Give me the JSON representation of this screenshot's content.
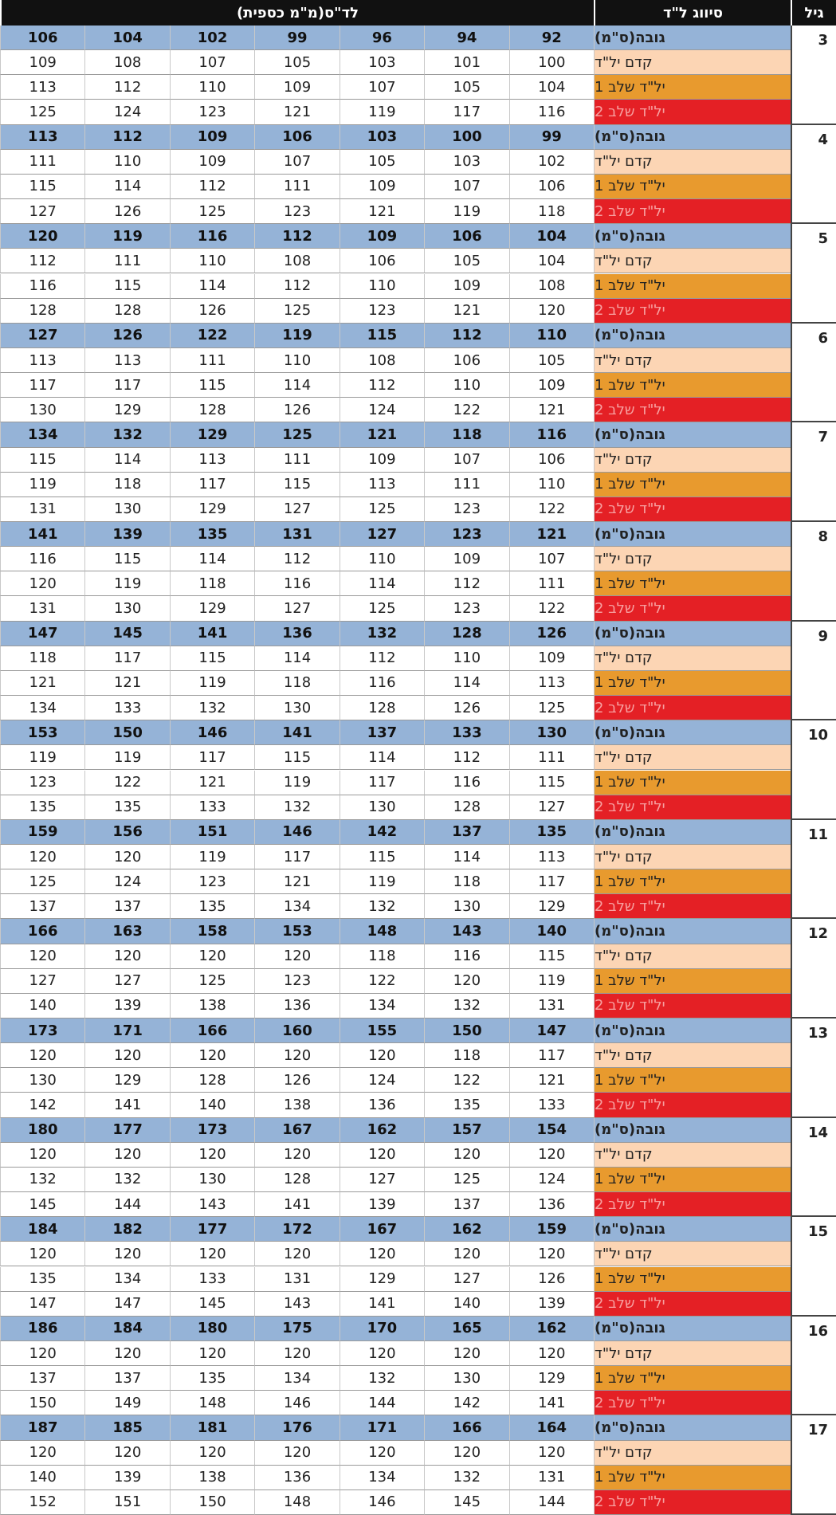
{
  "header": {
    "age": "גיל",
    "category": "סיווג ל\"ד",
    "bp": "לד\"ס(מ\"מ כספית)"
  },
  "groups": [
    {
      "age": "3",
      "rows": [
        {
          "label": "גובה(ס\"מ)",
          "values": [
            92,
            94,
            96,
            99,
            102,
            104,
            106
          ]
        },
        {
          "label": "קדם יל\"ד",
          "values": [
            100,
            101,
            103,
            105,
            107,
            108,
            109
          ]
        },
        {
          "label": "יל\"ד שלב 1",
          "values": [
            104,
            105,
            107,
            109,
            110,
            112,
            113
          ]
        },
        {
          "label": "יל\"ד שלב 2",
          "values": [
            116,
            117,
            119,
            121,
            123,
            124,
            125
          ]
        }
      ]
    },
    {
      "age": "4",
      "rows": [
        {
          "label": "גובה(ס\"מ)",
          "values": [
            99,
            100,
            103,
            106,
            109,
            112,
            113
          ]
        },
        {
          "label": "קדם יל\"ד",
          "values": [
            102,
            103,
            105,
            107,
            109,
            110,
            111
          ]
        },
        {
          "label": "יל\"ד שלב 1",
          "values": [
            106,
            107,
            109,
            111,
            112,
            114,
            115
          ]
        },
        {
          "label": "יל\"ד שלב 2",
          "values": [
            118,
            119,
            121,
            123,
            125,
            126,
            127
          ]
        }
      ]
    },
    {
      "age": "5",
      "rows": [
        {
          "label": "גובה(ס\"מ)",
          "values": [
            104,
            106,
            109,
            112,
            116,
            119,
            120
          ]
        },
        {
          "label": "קדם יל\"ד",
          "values": [
            104,
            105,
            106,
            108,
            110,
            111,
            112
          ]
        },
        {
          "label": "יל\"ד שלב 1",
          "values": [
            108,
            109,
            110,
            112,
            114,
            115,
            116
          ]
        },
        {
          "label": "יל\"ד שלב 2",
          "values": [
            120,
            121,
            123,
            125,
            126,
            128,
            128
          ]
        }
      ]
    },
    {
      "age": "6",
      "rows": [
        {
          "label": "גובה(ס\"מ)",
          "values": [
            110,
            112,
            115,
            119,
            122,
            126,
            127
          ]
        },
        {
          "label": "קדם יל\"ד",
          "values": [
            105,
            106,
            108,
            110,
            111,
            113,
            113
          ]
        },
        {
          "label": "יל\"ד שלב 1",
          "values": [
            109,
            110,
            112,
            114,
            115,
            117,
            117
          ]
        },
        {
          "label": "יל\"ד שלב 2",
          "values": [
            121,
            122,
            124,
            126,
            128,
            129,
            130
          ]
        }
      ]
    },
    {
      "age": "7",
      "rows": [
        {
          "label": "גובה(ס\"מ)",
          "values": [
            116,
            118,
            121,
            125,
            129,
            132,
            134
          ]
        },
        {
          "label": "קדם יל\"ד",
          "values": [
            106,
            107,
            109,
            111,
            113,
            114,
            115
          ]
        },
        {
          "label": "יל\"ד שלב 1",
          "values": [
            110,
            111,
            113,
            115,
            117,
            118,
            119
          ]
        },
        {
          "label": "יל\"ד שלב 2",
          "values": [
            122,
            123,
            125,
            127,
            129,
            130,
            131
          ]
        }
      ]
    },
    {
      "age": "8",
      "rows": [
        {
          "label": "גובה(ס\"מ)",
          "values": [
            121,
            123,
            127,
            131,
            135,
            139,
            141
          ]
        },
        {
          "label": "קדם יל\"ד",
          "values": [
            107,
            109,
            110,
            112,
            114,
            115,
            116
          ]
        },
        {
          "label": "יל\"ד שלב 1",
          "values": [
            111,
            112,
            114,
            116,
            118,
            119,
            120
          ]
        },
        {
          "label": "יל\"ד שלב 2",
          "values": [
            122,
            123,
            125,
            127,
            129,
            130,
            131
          ]
        }
      ]
    },
    {
      "age": "9",
      "rows": [
        {
          "label": "גובה(ס\"מ)",
          "values": [
            126,
            128,
            132,
            136,
            141,
            145,
            147
          ]
        },
        {
          "label": "קדם יל\"ד",
          "values": [
            109,
            110,
            112,
            114,
            115,
            117,
            118
          ]
        },
        {
          "label": "יל\"ד שלב 1",
          "values": [
            113,
            114,
            116,
            118,
            119,
            121,
            121
          ]
        },
        {
          "label": "יל\"ד שלב 2",
          "values": [
            125,
            126,
            128,
            130,
            132,
            133,
            134
          ]
        }
      ]
    },
    {
      "age": "10",
      "rows": [
        {
          "label": "גובה(ס\"מ)",
          "values": [
            130,
            133,
            137,
            141,
            146,
            150,
            153
          ]
        },
        {
          "label": "קדם יל\"ד",
          "values": [
            111,
            112,
            114,
            115,
            117,
            119,
            119
          ]
        },
        {
          "label": "יל\"ד שלב 1",
          "values": [
            115,
            116,
            117,
            119,
            121,
            122,
            123
          ]
        },
        {
          "label": "יל\"ד שלב 2",
          "values": [
            127,
            128,
            130,
            132,
            133,
            135,
            135
          ]
        }
      ]
    },
    {
      "age": "11",
      "rows": [
        {
          "label": "גובה(ס\"מ)",
          "values": [
            135,
            137,
            142,
            146,
            151,
            156,
            159
          ]
        },
        {
          "label": "קדם יל\"ד",
          "values": [
            113,
            114,
            115,
            117,
            119,
            120,
            120
          ]
        },
        {
          "label": "יל\"ד שלב 1",
          "values": [
            117,
            118,
            119,
            121,
            123,
            124,
            125
          ]
        },
        {
          "label": "יל\"ד שלב 2",
          "values": [
            129,
            130,
            132,
            134,
            135,
            137,
            137
          ]
        }
      ]
    },
    {
      "age": "12",
      "rows": [
        {
          "label": "גובה(ס\"מ)",
          "values": [
            140,
            143,
            148,
            153,
            158,
            163,
            166
          ]
        },
        {
          "label": "קדם יל\"ד",
          "values": [
            115,
            116,
            118,
            120,
            120,
            120,
            120
          ]
        },
        {
          "label": "יל\"ד שלב 1",
          "values": [
            119,
            120,
            122,
            123,
            125,
            127,
            127
          ]
        },
        {
          "label": "יל\"ד שלב 2",
          "values": [
            131,
            132,
            134,
            136,
            138,
            139,
            140
          ]
        }
      ]
    },
    {
      "age": "13",
      "rows": [
        {
          "label": "גובה(ס\"מ)",
          "values": [
            147,
            150,
            155,
            160,
            166,
            171,
            173
          ]
        },
        {
          "label": "קדם יל\"ד",
          "values": [
            117,
            118,
            120,
            120,
            120,
            120,
            120
          ]
        },
        {
          "label": "יל\"ד שלב 1",
          "values": [
            121,
            122,
            124,
            126,
            128,
            129,
            130
          ]
        },
        {
          "label": "יל\"ד שלב 2",
          "values": [
            133,
            135,
            136,
            138,
            140,
            141,
            142
          ]
        }
      ]
    },
    {
      "age": "14",
      "rows": [
        {
          "label": "גובה(ס\"מ)",
          "values": [
            154,
            157,
            162,
            167,
            173,
            177,
            180
          ]
        },
        {
          "label": "קדם יל\"ד",
          "values": [
            120,
            120,
            120,
            120,
            120,
            120,
            120
          ]
        },
        {
          "label": "יל\"ד שלב 1",
          "values": [
            124,
            125,
            127,
            128,
            130,
            132,
            132
          ]
        },
        {
          "label": "יל\"ד שלב 2",
          "values": [
            136,
            137,
            139,
            141,
            143,
            144,
            145
          ]
        }
      ]
    },
    {
      "age": "15",
      "rows": [
        {
          "label": "גובה(ס\"מ)",
          "values": [
            159,
            162,
            167,
            172,
            177,
            182,
            184
          ]
        },
        {
          "label": "קדם יל\"ד",
          "values": [
            120,
            120,
            120,
            120,
            120,
            120,
            120
          ]
        },
        {
          "label": "יל\"ד שלב 1",
          "values": [
            126,
            127,
            129,
            131,
            133,
            134,
            135
          ]
        },
        {
          "label": "יל\"ד שלב 2",
          "values": [
            139,
            140,
            141,
            143,
            145,
            147,
            147
          ]
        }
      ]
    },
    {
      "age": "16",
      "rows": [
        {
          "label": "גובה(ס\"מ)",
          "values": [
            162,
            165,
            170,
            175,
            180,
            184,
            186
          ]
        },
        {
          "label": "קדם יל\"ד",
          "values": [
            120,
            120,
            120,
            120,
            120,
            120,
            120
          ]
        },
        {
          "label": "יל\"ד שלב 1",
          "values": [
            129,
            130,
            132,
            134,
            135,
            137,
            137
          ]
        },
        {
          "label": "יל\"ד שלב 2",
          "values": [
            141,
            142,
            144,
            146,
            148,
            149,
            150
          ]
        }
      ]
    },
    {
      "age": "17",
      "rows": [
        {
          "label": "גובה(ס\"מ)",
          "values": [
            164,
            166,
            171,
            176,
            181,
            185,
            187
          ]
        },
        {
          "label": "קדם יל\"ד",
          "values": [
            120,
            120,
            120,
            120,
            120,
            120,
            120
          ]
        },
        {
          "label": "יל\"ד שלב 1",
          "values": [
            131,
            132,
            134,
            136,
            138,
            139,
            140
          ]
        },
        {
          "label": "יל\"ד שלב 2",
          "values": [
            144,
            145,
            146,
            148,
            150,
            151,
            152
          ]
        }
      ]
    }
  ]
}
